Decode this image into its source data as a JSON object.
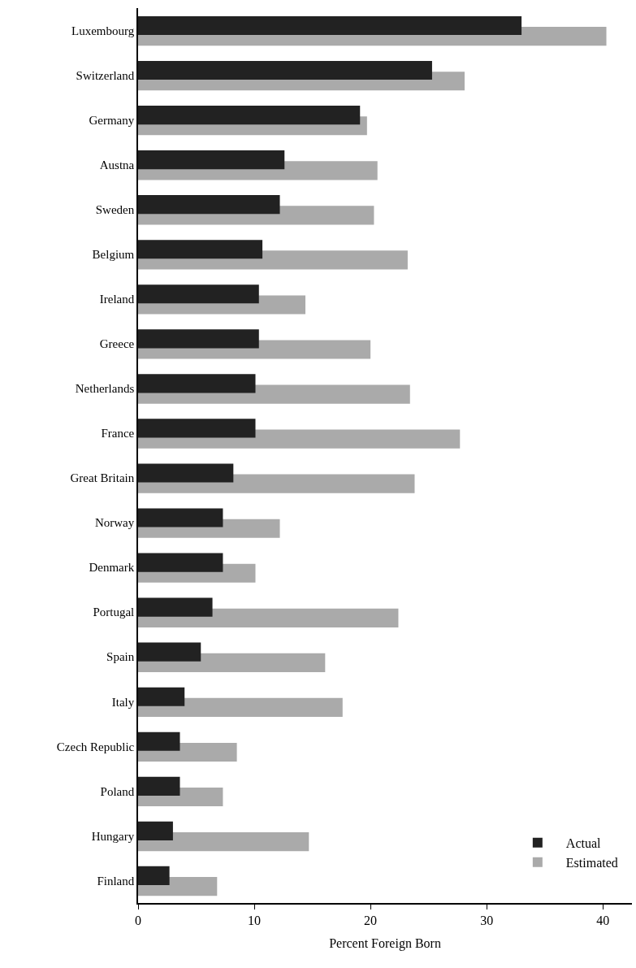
{
  "chart_data": {
    "type": "bar",
    "orientation": "horizontal",
    "xlabel": "Percent Foreign Born",
    "categories": [
      "Luxembourg",
      "Switzerland",
      "Germany",
      "Austna",
      "Sweden",
      "Belgium",
      "Ireland",
      "Greece",
      "Netherlands",
      "France",
      "Great Britain",
      "Norway",
      "Denmark",
      "Portugal",
      "Spain",
      "Italy",
      "Czech Republic",
      "Poland",
      "Hungary",
      "Finland"
    ],
    "series": [
      {
        "name": "Actual",
        "color": "#222222",
        "values": [
          33.0,
          25.3,
          19.1,
          12.6,
          12.2,
          10.7,
          10.4,
          10.4,
          10.1,
          10.1,
          8.2,
          7.3,
          7.3,
          6.4,
          5.4,
          4.0,
          3.6,
          3.6,
          3.0,
          2.7
        ]
      },
      {
        "name": "Estimated",
        "color": "#aaaaaa",
        "values": [
          40.3,
          28.1,
          19.7,
          20.6,
          20.3,
          23.2,
          14.4,
          20.0,
          23.4,
          27.7,
          23.8,
          12.2,
          10.1,
          22.4,
          16.1,
          17.6,
          8.5,
          7.3,
          14.7,
          6.8
        ]
      }
    ],
    "xlim": [
      0,
      42.5
    ],
    "xticks": [
      0,
      10,
      20,
      30,
      40
    ],
    "legend": "bottom right"
  }
}
